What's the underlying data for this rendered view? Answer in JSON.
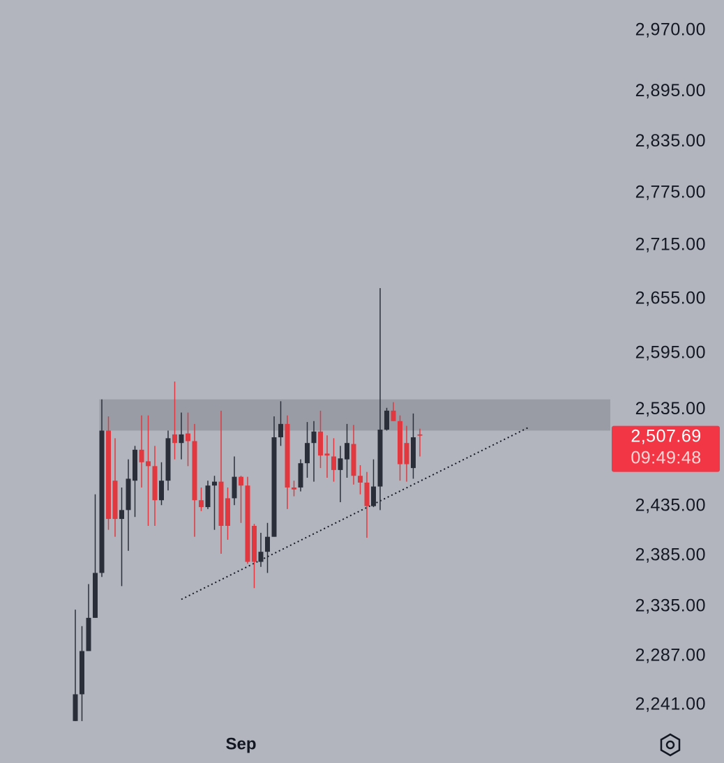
{
  "chart_data": {
    "type": "candlestick",
    "log_scale": true,
    "ylim": [
      2222,
      3008
    ],
    "yticks": [
      {
        "value": 2970,
        "label": "2,970.00"
      },
      {
        "value": 2895,
        "label": "2,895.00"
      },
      {
        "value": 2835,
        "label": "2,835.00"
      },
      {
        "value": 2775,
        "label": "2,775.00"
      },
      {
        "value": 2715,
        "label": "2,715.00"
      },
      {
        "value": 2655,
        "label": "2,655.00"
      },
      {
        "value": 2595,
        "label": "2,595.00"
      },
      {
        "value": 2535,
        "label": "2,535.00"
      },
      {
        "value": 2435,
        "label": "2,435.00"
      },
      {
        "value": 2385,
        "label": "2,385.00"
      },
      {
        "value": 2335,
        "label": "2,335.00"
      },
      {
        "value": 2287,
        "label": "2,287.00"
      },
      {
        "value": 2241,
        "label": "2,241.00"
      }
    ],
    "categories": [
      null,
      null,
      null,
      null,
      null,
      null,
      null,
      null,
      null,
      null,
      null,
      null,
      null,
      null,
      null,
      null,
      null,
      null,
      null,
      null,
      null,
      null,
      null,
      null,
      null,
      "Sep",
      null,
      null,
      null,
      null,
      null,
      null,
      null,
      null,
      null,
      null,
      null,
      null,
      null,
      null,
      null,
      null,
      null,
      null,
      null,
      null,
      null,
      null,
      null,
      null,
      null,
      null,
      null
    ],
    "open": [
      2226,
      2251,
      2292,
      2324,
      2368,
      2513,
      2461,
      2422,
      2431,
      2461,
      2493,
      2481,
      2476,
      2441,
      2461,
      2509,
      2500,
      2510,
      2502,
      2441,
      2434,
      2456,
      2460,
      2443,
      2443,
      2465,
      2456,
      2415,
      2379,
      2389,
      2404,
      2506,
      2520,
      2454,
      2454,
      2479,
      2500,
      2512,
      2489,
      2486,
      2472,
      2483,
      2499,
      2466,
      2459,
      2435,
      2455,
      2514,
      2534,
      2523,
      2500,
      2474,
      2509
    ],
    "high": [
      2332,
      2316,
      2357,
      2447,
      2546,
      2528,
      2505,
      2454,
      2483,
      2497,
      2529,
      2529,
      2497,
      2480,
      2513,
      2565,
      2532,
      2532,
      2520,
      2454,
      2461,
      2466,
      2534,
      2454,
      2486,
      2466,
      2465,
      2417,
      2408,
      2418,
      2528,
      2544,
      2529,
      2461,
      2483,
      2522,
      2523,
      2534,
      2508,
      2505,
      2497,
      2520,
      2519,
      2477,
      2470,
      2483,
      2667,
      2537,
      2543,
      2529,
      2518,
      2531,
      2515
    ],
    "low": [
      2226,
      2226,
      2292,
      2324,
      2364,
      2411,
      2404,
      2355,
      2390,
      2424,
      2454,
      2415,
      2415,
      2436,
      2451,
      2483,
      2483,
      2476,
      2404,
      2430,
      2432,
      2411,
      2387,
      2401,
      2436,
      2418,
      2377,
      2353,
      2374,
      2368,
      2404,
      2497,
      2432,
      2445,
      2450,
      2464,
      2460,
      2474,
      2464,
      2460,
      2439,
      2464,
      2457,
      2447,
      2403,
      2434,
      2431,
      2513,
      2523,
      2461,
      2460,
      2463,
      2486
    ],
    "close": [
      2251,
      2292,
      2324,
      2368,
      2513,
      2422,
      2422,
      2431,
      2463,
      2493,
      2480,
      2476,
      2441,
      2461,
      2505,
      2500,
      2509,
      2502,
      2441,
      2434,
      2456,
      2460,
      2415,
      2415,
      2465,
      2456,
      2379,
      2379,
      2389,
      2404,
      2506,
      2520,
      2454,
      2452,
      2479,
      2500,
      2512,
      2487,
      2487,
      2472,
      2484,
      2500,
      2466,
      2459,
      2435,
      2455,
      2514,
      2534,
      2523,
      2478,
      2478,
      2506,
      2507.69
    ],
    "up_color": "#2a2e39",
    "down_color": "#e0383e",
    "zone": {
      "from_index": 4,
      "low": 2513,
      "high": 2546,
      "color": "#9598a1"
    },
    "trendline": {
      "from_index": 16,
      "from_value": 2342,
      "to_index": 68.3,
      "to_value": 2516
    },
    "last_price": {
      "value": 2507.69,
      "label": "2,507.69"
    },
    "countdown": "09:49:48",
    "last_price_color": "#f23645"
  }
}
